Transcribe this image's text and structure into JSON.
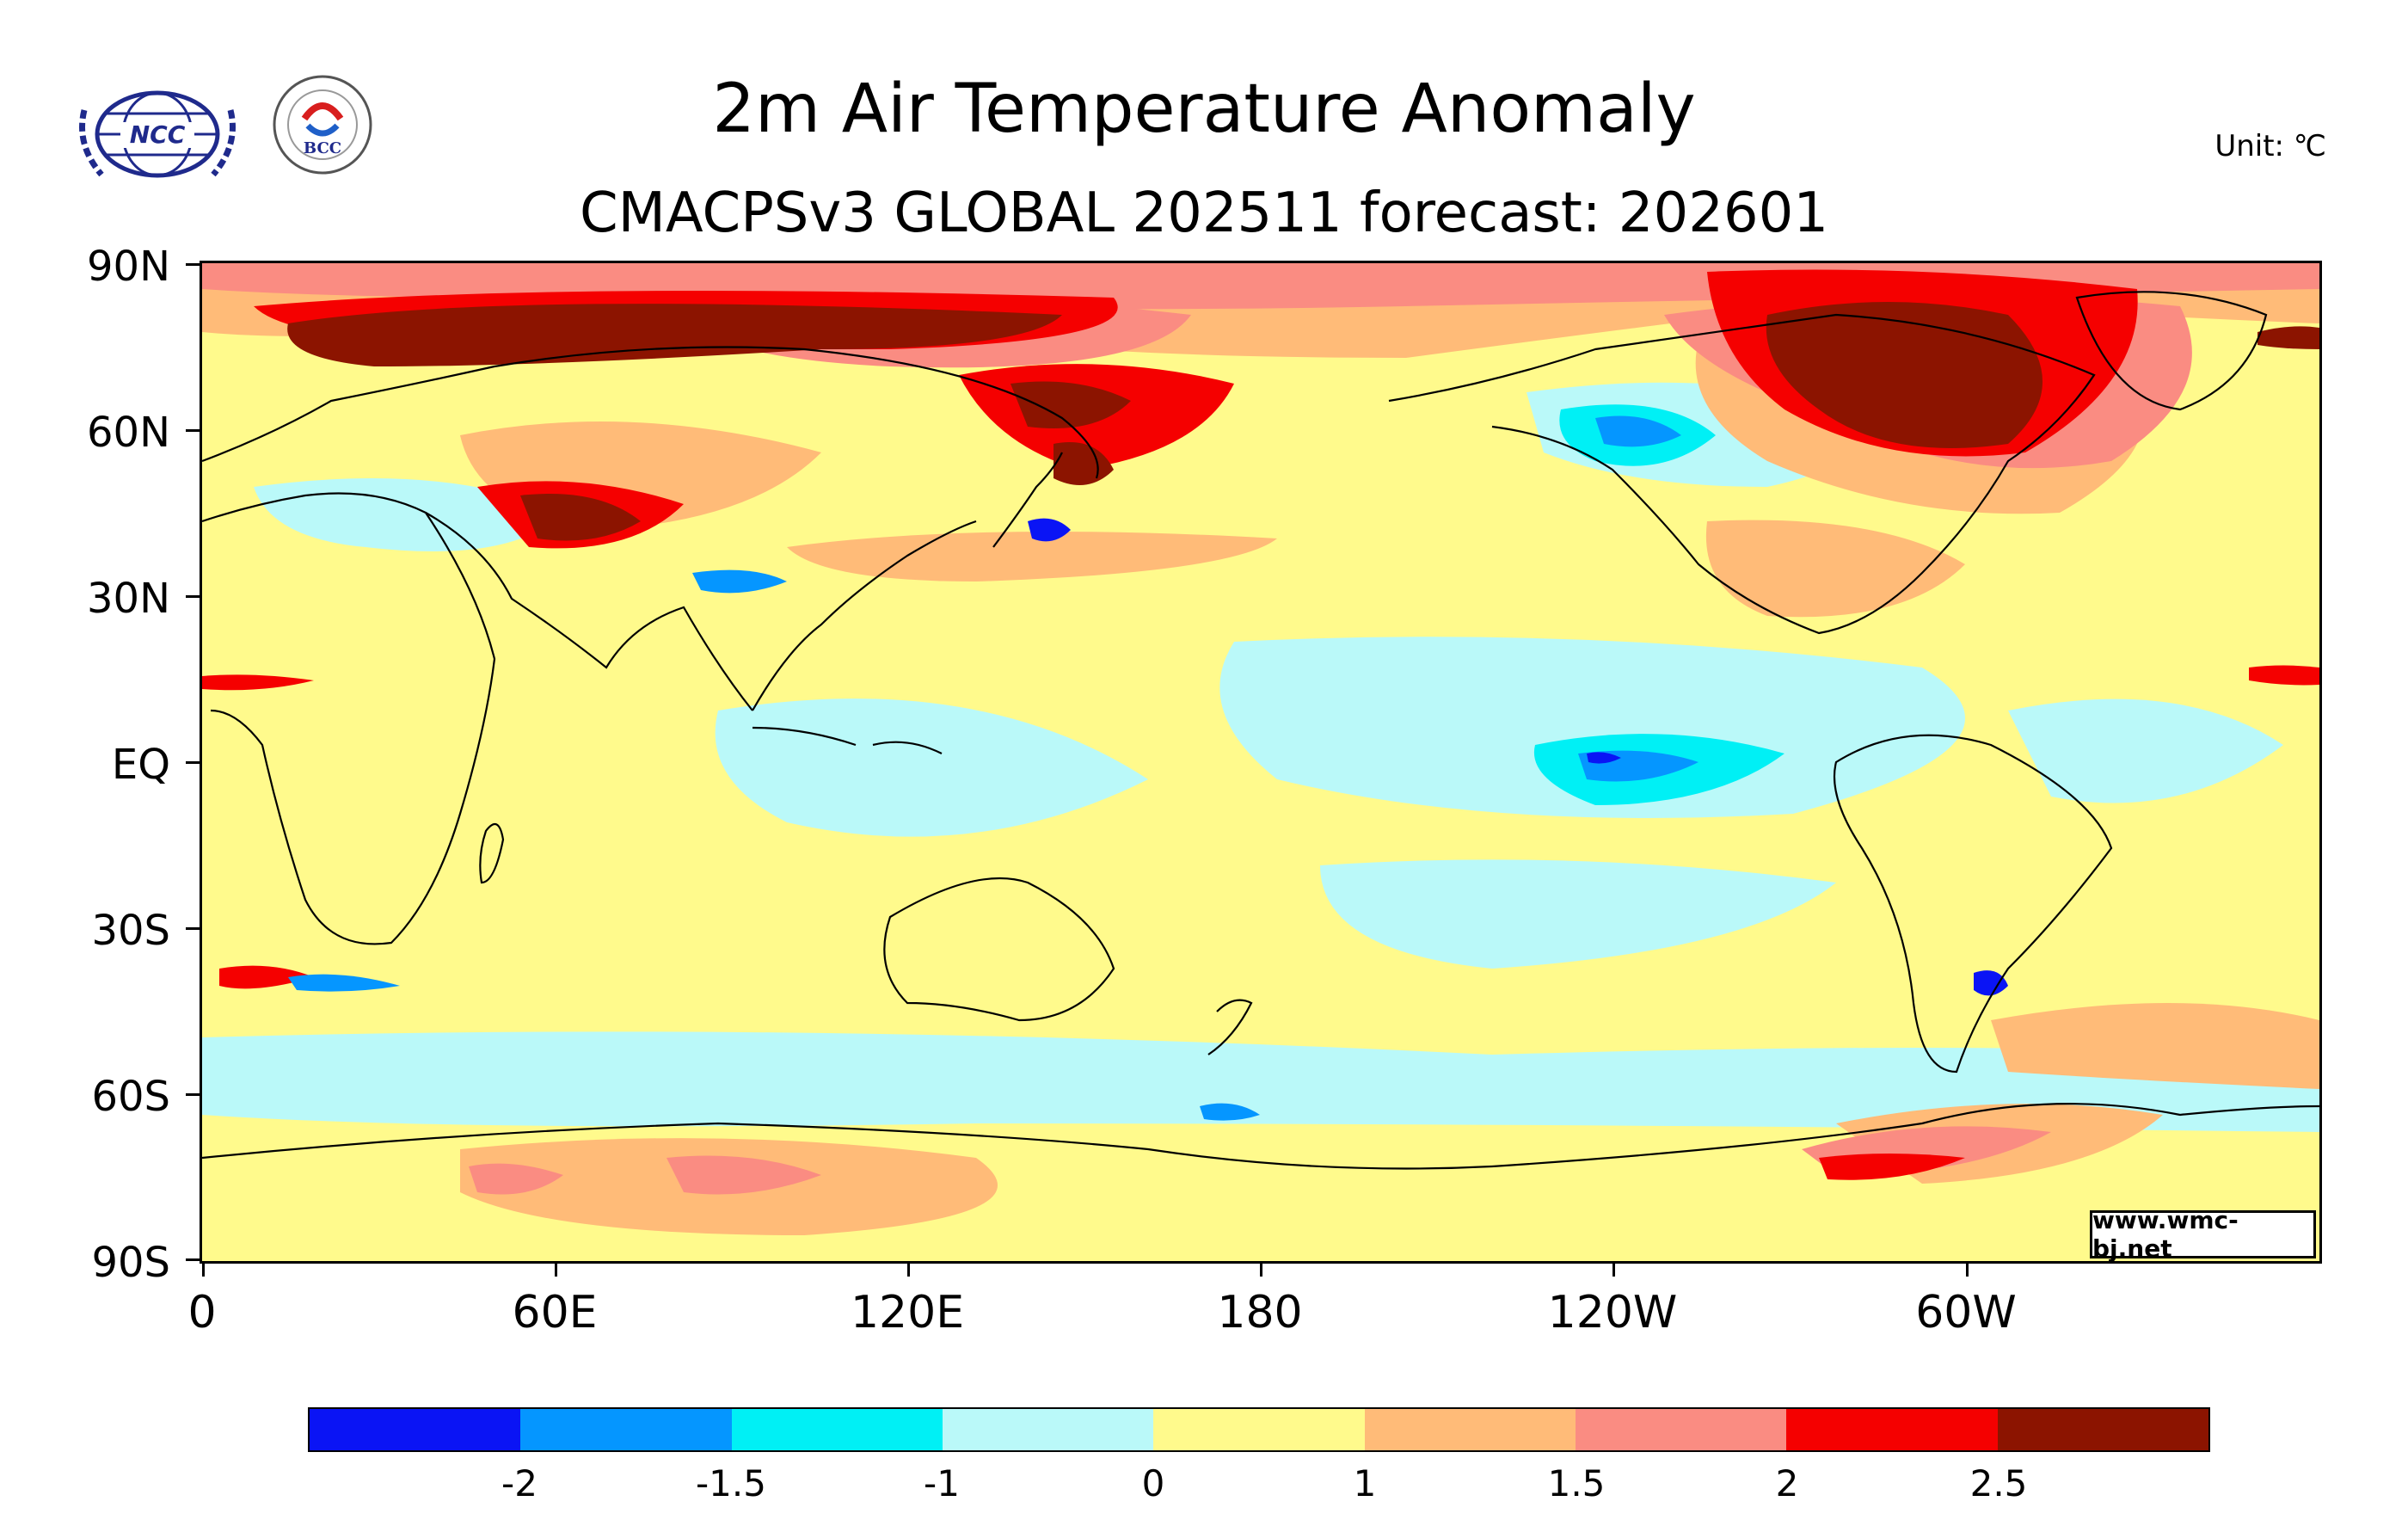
{
  "header": {
    "title": "2m Air Temperature Anomaly",
    "subtitle": "CMACPSv3 GLOBAL 202511 forecast: 202601",
    "unit": "Unit: ℃"
  },
  "logos": {
    "ncc_text": "NCC",
    "bcc_text": "BCC"
  },
  "axes": {
    "y_labels": [
      "90N",
      "60N",
      "30N",
      "EQ",
      "30S",
      "60S",
      "90S"
    ],
    "x_labels": [
      "0",
      "60E",
      "120E",
      "180",
      "120W",
      "60W"
    ]
  },
  "watermark": "www.wmc-bj.net",
  "colorbar": {
    "colors": [
      "#0a14f5",
      "#0596ff",
      "#00f0f5",
      "#baf9f9",
      "#fffa8c",
      "#ffbb78",
      "#fa8c82",
      "#f50000",
      "#8c1400"
    ],
    "labels": [
      "-2",
      "-1.5",
      "-1",
      "0",
      "1",
      "1.5",
      "2",
      "2.5"
    ]
  },
  "map": {
    "extent": {
      "lon": [
        0,
        360
      ],
      "lat": [
        -90,
        90
      ]
    },
    "projection": "cylindrical equidistant, centered on 180"
  }
}
